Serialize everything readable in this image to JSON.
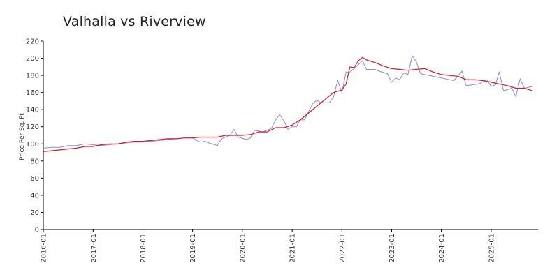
{
  "chart_data": {
    "type": "line",
    "title": "Valhalla vs Riverview",
    "xlabel": "",
    "ylabel": "Price Per Sq. Ft",
    "ylim": [
      0,
      220
    ],
    "yticks": [
      0,
      20,
      40,
      60,
      80,
      100,
      120,
      140,
      160,
      180,
      200,
      220
    ],
    "xticks": [
      "2016-01",
      "2017-01",
      "2018-01",
      "2019-01",
      "2020-01",
      "2021-01",
      "2022-01",
      "2023-01",
      "2024-01",
      "2025-01"
    ],
    "grid": false,
    "legend": "none",
    "series": [
      {
        "color": "#8888ee",
        "points": [
          [
            "2016-01",
            95
          ],
          [
            "2016-03",
            96
          ],
          [
            "2016-05",
            96
          ],
          [
            "2016-07",
            98
          ],
          [
            "2016-09",
            98
          ],
          [
            "2016-11",
            100
          ],
          [
            "2017-01",
            99
          ],
          [
            "2017-03",
            98
          ],
          [
            "2017-05",
            99
          ],
          [
            "2017-07",
            100
          ],
          [
            "2017-09",
            101
          ],
          [
            "2017-11",
            102
          ],
          [
            "2018-01",
            102
          ],
          [
            "2018-03",
            103
          ],
          [
            "2018-05",
            104
          ],
          [
            "2018-07",
            105
          ],
          [
            "2018-09",
            106
          ],
          [
            "2018-11",
            107
          ],
          [
            "2019-01",
            107
          ],
          [
            "2019-02",
            104
          ],
          [
            "2019-03",
            102
          ],
          [
            "2019-04",
            103
          ],
          [
            "2019-05",
            101
          ],
          [
            "2019-07",
            98
          ],
          [
            "2019-08",
            106
          ],
          [
            "2019-10",
            110
          ],
          [
            "2019-11",
            117
          ],
          [
            "2019-12",
            108
          ],
          [
            "2020-02",
            105
          ],
          [
            "2020-03",
            107
          ],
          [
            "2020-04",
            116
          ],
          [
            "2020-06",
            114
          ],
          [
            "2020-08",
            118
          ],
          [
            "2020-09",
            128
          ],
          [
            "2020-10",
            134
          ],
          [
            "2020-11",
            127
          ],
          [
            "2020-12",
            117
          ],
          [
            "2021-01",
            120
          ],
          [
            "2021-02",
            120
          ],
          [
            "2021-03",
            128
          ],
          [
            "2021-04",
            128
          ],
          [
            "2021-06",
            147
          ],
          [
            "2021-07",
            151
          ],
          [
            "2021-08",
            148
          ],
          [
            "2021-10",
            148
          ],
          [
            "2021-11",
            155
          ],
          [
            "2021-12",
            174
          ],
          [
            "2022-01",
            160
          ],
          [
            "2022-02",
            184
          ],
          [
            "2022-03",
            184
          ],
          [
            "2022-04",
            188
          ],
          [
            "2022-06",
            197
          ],
          [
            "2022-07",
            187
          ],
          [
            "2022-09",
            187
          ],
          [
            "2022-10",
            185
          ],
          [
            "2022-12",
            182
          ],
          [
            "2023-01",
            172
          ],
          [
            "2023-02",
            177
          ],
          [
            "2023-03",
            175
          ],
          [
            "2023-04",
            183
          ],
          [
            "2023-05",
            181
          ],
          [
            "2023-06",
            203
          ],
          [
            "2023-07",
            196
          ],
          [
            "2023-08",
            182
          ],
          [
            "2023-10",
            180
          ],
          [
            "2024-01",
            177
          ],
          [
            "2024-04",
            174
          ],
          [
            "2024-06",
            185
          ],
          [
            "2024-07",
            168
          ],
          [
            "2024-10",
            170
          ],
          [
            "2024-12",
            175
          ],
          [
            "2025-01",
            167
          ],
          [
            "2025-02",
            169
          ],
          [
            "2025-03",
            184
          ],
          [
            "2025-04",
            162
          ],
          [
            "2025-06",
            165
          ],
          [
            "2025-07",
            155
          ],
          [
            "2025-08",
            176
          ],
          [
            "2025-09",
            165
          ],
          [
            "2025-11",
            167
          ]
        ]
      },
      {
        "color": "#e8141a",
        "points": [
          [
            "2016-01",
            91
          ],
          [
            "2016-03",
            92
          ],
          [
            "2016-05",
            93
          ],
          [
            "2016-07",
            94
          ],
          [
            "2016-09",
            95
          ],
          [
            "2016-11",
            97
          ],
          [
            "2017-01",
            97
          ],
          [
            "2017-03",
            99
          ],
          [
            "2017-05",
            100
          ],
          [
            "2017-07",
            100
          ],
          [
            "2017-09",
            102
          ],
          [
            "2017-11",
            103
          ],
          [
            "2018-01",
            103
          ],
          [
            "2018-03",
            104
          ],
          [
            "2018-05",
            105
          ],
          [
            "2018-07",
            106
          ],
          [
            "2018-09",
            106
          ],
          [
            "2018-11",
            107
          ],
          [
            "2019-01",
            107
          ],
          [
            "2019-03",
            108
          ],
          [
            "2019-05",
            108
          ],
          [
            "2019-07",
            108
          ],
          [
            "2019-09",
            110
          ],
          [
            "2019-11",
            110
          ],
          [
            "2020-01",
            110
          ],
          [
            "2020-03",
            111
          ],
          [
            "2020-05",
            114
          ],
          [
            "2020-07",
            114
          ],
          [
            "2020-09",
            119
          ],
          [
            "2020-11",
            119
          ],
          [
            "2021-01",
            122
          ],
          [
            "2021-03",
            128
          ],
          [
            "2021-05",
            136
          ],
          [
            "2021-07",
            144
          ],
          [
            "2021-09",
            152
          ],
          [
            "2021-11",
            160
          ],
          [
            "2022-01",
            163
          ],
          [
            "2022-02",
            170
          ],
          [
            "2022-03",
            190
          ],
          [
            "2022-04",
            189
          ],
          [
            "2022-05",
            197
          ],
          [
            "2022-06",
            201
          ],
          [
            "2022-07",
            198
          ],
          [
            "2022-09",
            195
          ],
          [
            "2022-11",
            191
          ],
          [
            "2023-01",
            188
          ],
          [
            "2023-03",
            187
          ],
          [
            "2023-05",
            186
          ],
          [
            "2023-07",
            187
          ],
          [
            "2023-09",
            188
          ],
          [
            "2023-11",
            184
          ],
          [
            "2024-01",
            181
          ],
          [
            "2024-03",
            180
          ],
          [
            "2024-05",
            179
          ],
          [
            "2024-07",
            175
          ],
          [
            "2024-09",
            175
          ],
          [
            "2024-11",
            174
          ],
          [
            "2025-01",
            172
          ],
          [
            "2025-03",
            170
          ],
          [
            "2025-05",
            168
          ],
          [
            "2025-07",
            165
          ],
          [
            "2025-09",
            165
          ],
          [
            "2025-11",
            162
          ]
        ]
      }
    ]
  }
}
